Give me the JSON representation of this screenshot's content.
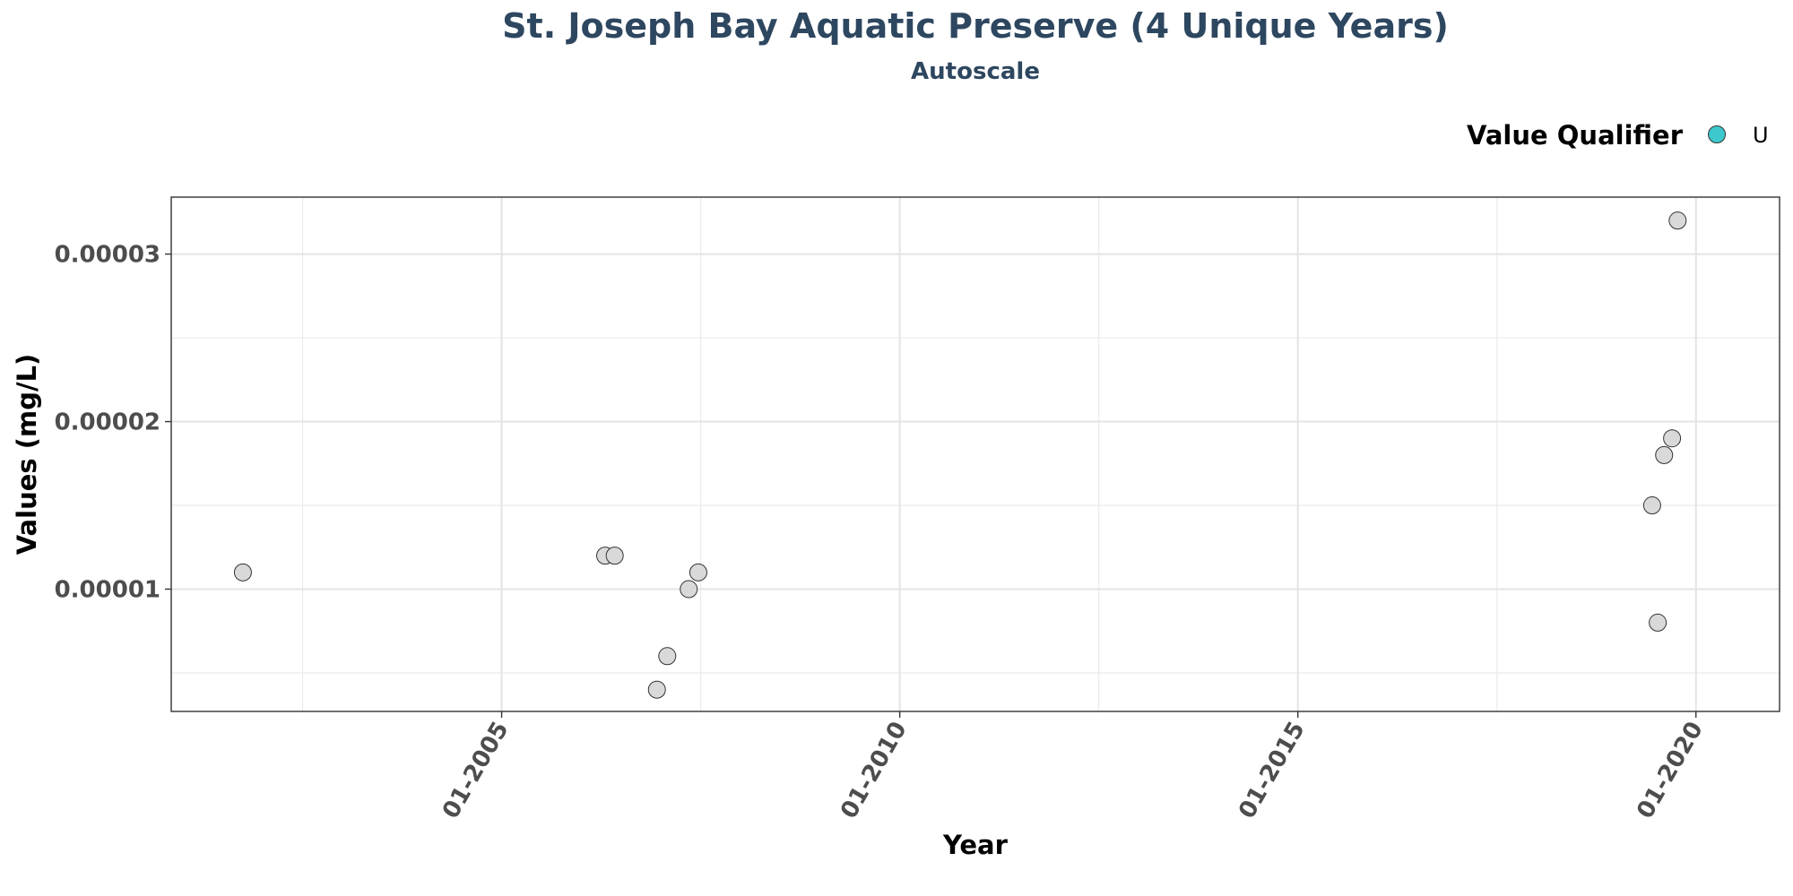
{
  "chart_data": {
    "type": "scatter",
    "title": "St. Joseph Bay Aquatic Preserve (4 Unique Years)",
    "subtitle": "Autoscale",
    "xlabel": "Year",
    "ylabel": "Values (mg/L)",
    "xlim": [
      2000.85,
      2021.05
    ],
    "ylim": [
      2.7e-06,
      3.34e-05
    ],
    "x_ticks": [
      2005,
      2010,
      2015,
      2020
    ],
    "x_tick_labels": [
      "01-2005",
      "01-2010",
      "01-2015",
      "01-2020"
    ],
    "x_minor_ticks": [
      2002.5,
      2007.5,
      2012.5,
      2017.5
    ],
    "y_ticks": [
      1e-05,
      2e-05,
      3e-05
    ],
    "y_tick_labels": [
      "0.00001",
      "0.00002",
      "0.00003"
    ],
    "y_minor_ticks": [
      5e-06,
      1.5e-05,
      2.5e-05
    ],
    "grid": true,
    "legend": {
      "title": "Value Qualifier",
      "position": "top-right",
      "entries": [
        {
          "label": "U",
          "color": "#3cc8cc"
        }
      ]
    },
    "series": [
      {
        "name": "U",
        "color": "#d9d9d9",
        "points": [
          {
            "x": 2001.75,
            "y": 1.1e-05
          },
          {
            "x": 2006.3,
            "y": 1.2e-05
          },
          {
            "x": 2006.42,
            "y": 1.2e-05
          },
          {
            "x": 2006.95,
            "y": 4e-06
          },
          {
            "x": 2007.08,
            "y": 6e-06
          },
          {
            "x": 2007.35,
            "y": 1e-05
          },
          {
            "x": 2007.47,
            "y": 1.1e-05
          },
          {
            "x": 2019.45,
            "y": 1.5e-05
          },
          {
            "x": 2019.52,
            "y": 8e-06
          },
          {
            "x": 2019.6,
            "y": 1.8e-05
          },
          {
            "x": 2019.7,
            "y": 1.9e-05
          },
          {
            "x": 2019.77,
            "y": 3.2e-05
          }
        ]
      }
    ]
  }
}
